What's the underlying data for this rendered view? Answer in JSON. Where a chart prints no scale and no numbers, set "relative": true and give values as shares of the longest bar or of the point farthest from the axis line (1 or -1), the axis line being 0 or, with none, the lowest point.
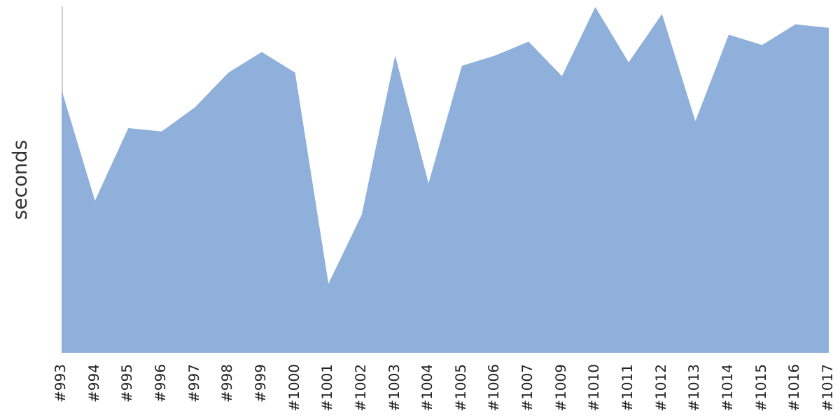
{
  "chart_data": {
    "type": "area",
    "ylabel": "seconds",
    "relative": true,
    "categories": [
      "#993",
      "#994",
      "#995",
      "#996",
      "#997",
      "#998",
      "#999",
      "#1000",
      "#1001",
      "#1002",
      "#1003",
      "#1004",
      "#1005",
      "#1006",
      "#1007",
      "#1009",
      "#1010",
      "#1011",
      "#1012",
      "#1013",
      "#1014",
      "#1015",
      "#1016",
      "#1017"
    ],
    "series": [
      {
        "color": "#8fb0da",
        "values": [
          0.76,
          0.44,
          0.65,
          0.64,
          0.71,
          0.81,
          0.87,
          0.81,
          0.2,
          0.4,
          0.86,
          0.49,
          0.83,
          0.86,
          0.9,
          0.8,
          1,
          0.84,
          0.98,
          0.67,
          0.92,
          0.89,
          0.95,
          0.94
        ]
      }
    ]
  }
}
